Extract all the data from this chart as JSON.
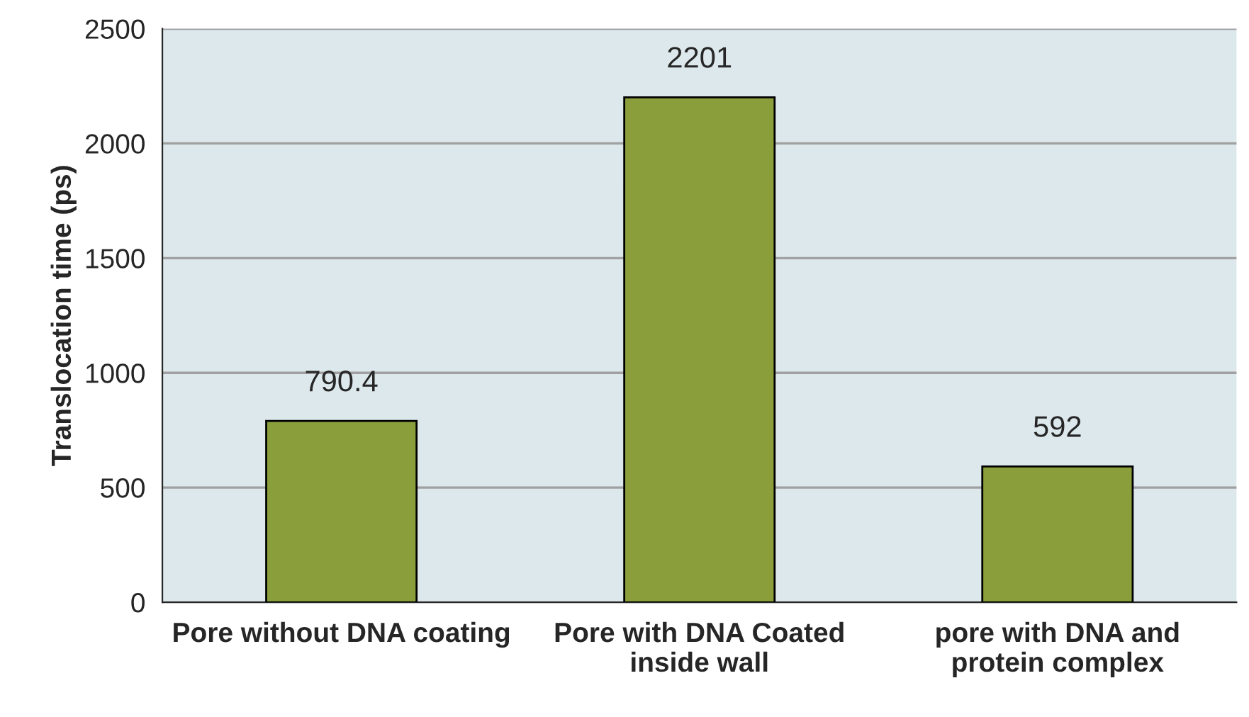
{
  "chart_data": {
    "type": "bar",
    "ylabel": "Translocation time (ps)",
    "categories": [
      "Pore without DNA coating",
      "Pore with DNA Coated\ninside wall",
      "pore with DNA and\nprotein complex"
    ],
    "values": [
      790.4,
      2201,
      592
    ],
    "color": "#8a9f3c",
    "ylim": [
      0,
      2500
    ],
    "yticks": [
      0,
      500,
      1000,
      1500,
      2000,
      2500
    ],
    "grid": "y",
    "data_labels": true
  }
}
